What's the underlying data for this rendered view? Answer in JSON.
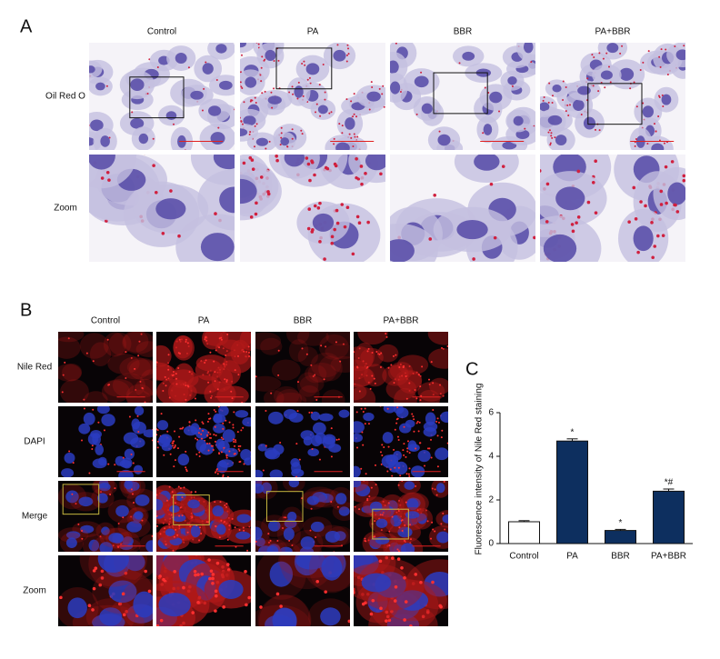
{
  "panel_a": {
    "label": "A",
    "columns": [
      "Control",
      "PA",
      "BBR",
      "PA+BBR"
    ],
    "rows": [
      "Oil Red O",
      "Zoom"
    ]
  },
  "panel_b": {
    "label": "B",
    "columns": [
      "Control",
      "PA",
      "BBR",
      "PA+BBR"
    ],
    "rows": [
      "Nile Red",
      "DAPI",
      "Merge",
      "Zoom"
    ]
  },
  "chart_data": {
    "type": "bar",
    "label": "C",
    "y_label": "Fluorescence intensity of Nile Red staining",
    "categories": [
      "Control",
      "PA",
      "BBR",
      "PA+BBR"
    ],
    "values": [
      1.0,
      4.7,
      0.6,
      2.4
    ],
    "errors": [
      0.05,
      0.1,
      0.05,
      0.1
    ],
    "annotations": [
      null,
      "*",
      "*",
      "*#"
    ],
    "colors": [
      "#ffffff",
      "#0d2f5f",
      "#0d2f5f",
      "#0d2f5f"
    ],
    "ylim": [
      0,
      6
    ],
    "yticks": [
      0,
      2,
      4,
      6
    ]
  }
}
